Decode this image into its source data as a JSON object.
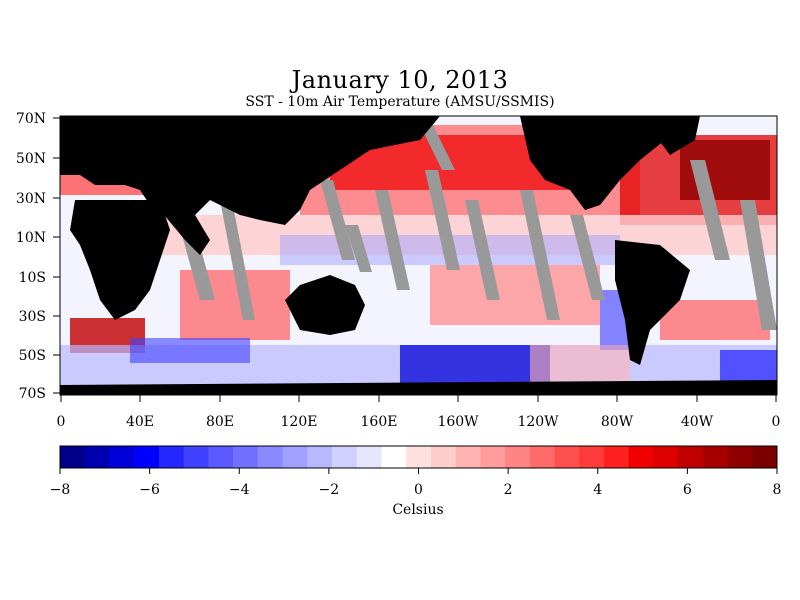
{
  "title": "January 10, 2013",
  "subtitle": "SST - 10m Air Temperature (AMSU/SSMIS)",
  "lat_labels": [
    "70N",
    "50N",
    "30N",
    "10N",
    "10S",
    "30S",
    "50S",
    "70S"
  ],
  "lon_labels": [
    "0",
    "40E",
    "80E",
    "120E",
    "160E",
    "160W",
    "120W",
    "80W",
    "40W",
    "0"
  ],
  "colorbar": {
    "min": -8,
    "max": 8,
    "step": 0.5,
    "tick_labels": [
      "−8",
      "−6",
      "−4",
      "−2",
      "0",
      "2",
      "4",
      "6",
      "8"
    ],
    "units_label": "Celsius",
    "negative_colors": [
      "#00008b",
      "#0000b0",
      "#0000d8",
      "#0000ff",
      "#2626ff",
      "#4040ff",
      "#5a5aff",
      "#7070ff",
      "#8a8aff",
      "#a0a0ff",
      "#b8b8ff",
      "#d0d0ff",
      "#e6e6ff",
      "#ffffff"
    ],
    "positive_colors": [
      "#ffffff",
      "#ffe0e0",
      "#ffcccc",
      "#ffb4b4",
      "#ff9c9c",
      "#ff8484",
      "#ff6a6a",
      "#ff5050",
      "#ff3a3a",
      "#ff2020",
      "#f00000",
      "#dc0000",
      "#c00000",
      "#a80000",
      "#900000",
      "#7a0000"
    ]
  },
  "legend_colors": {
    "land": "#000000",
    "no_data": "#999999"
  }
}
